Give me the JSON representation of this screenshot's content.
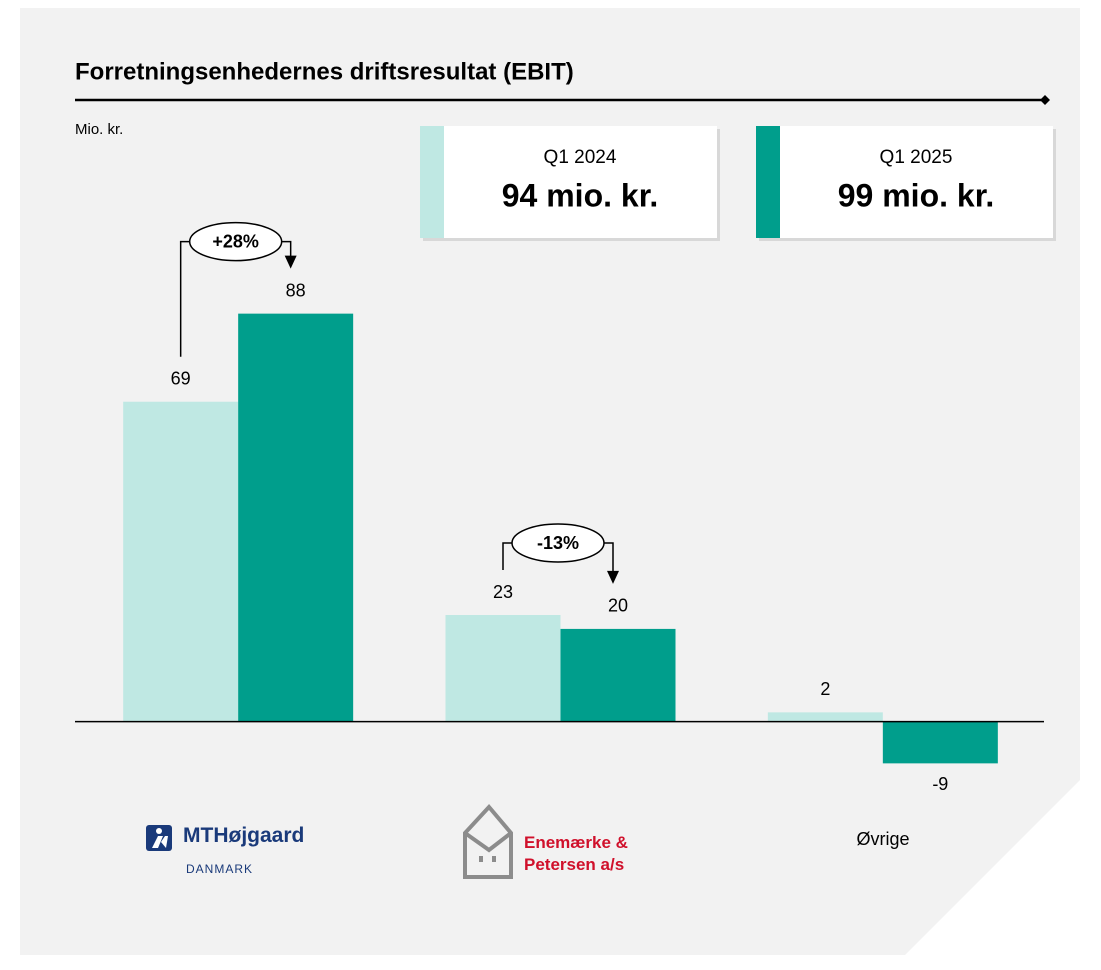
{
  "chart_data": {
    "type": "bar",
    "title": "Forretningsenhedernes driftsresultat (EBIT)",
    "y_axis_label": "Mio. kr.",
    "categories": [
      "MTHøjgaard",
      "Enemærke & Petersen a/s",
      "Øvrige"
    ],
    "category_notes": [
      "DANMARK",
      null,
      null
    ],
    "series": [
      {
        "name": "Q1 2024",
        "color": "#bfe8e3",
        "total_label": "94 mio. kr.",
        "values": [
          69,
          23,
          2
        ]
      },
      {
        "name": "Q1 2025",
        "color": "#009e8c",
        "total_label": "99 mio. kr.",
        "values": [
          88,
          20,
          -9
        ]
      }
    ],
    "annotations": [
      {
        "text": "+28%",
        "category": 0
      },
      {
        "text": "-13%",
        "category": 1
      }
    ],
    "ylim": [
      -10,
      100
    ],
    "yticks": [
      0
    ]
  }
}
